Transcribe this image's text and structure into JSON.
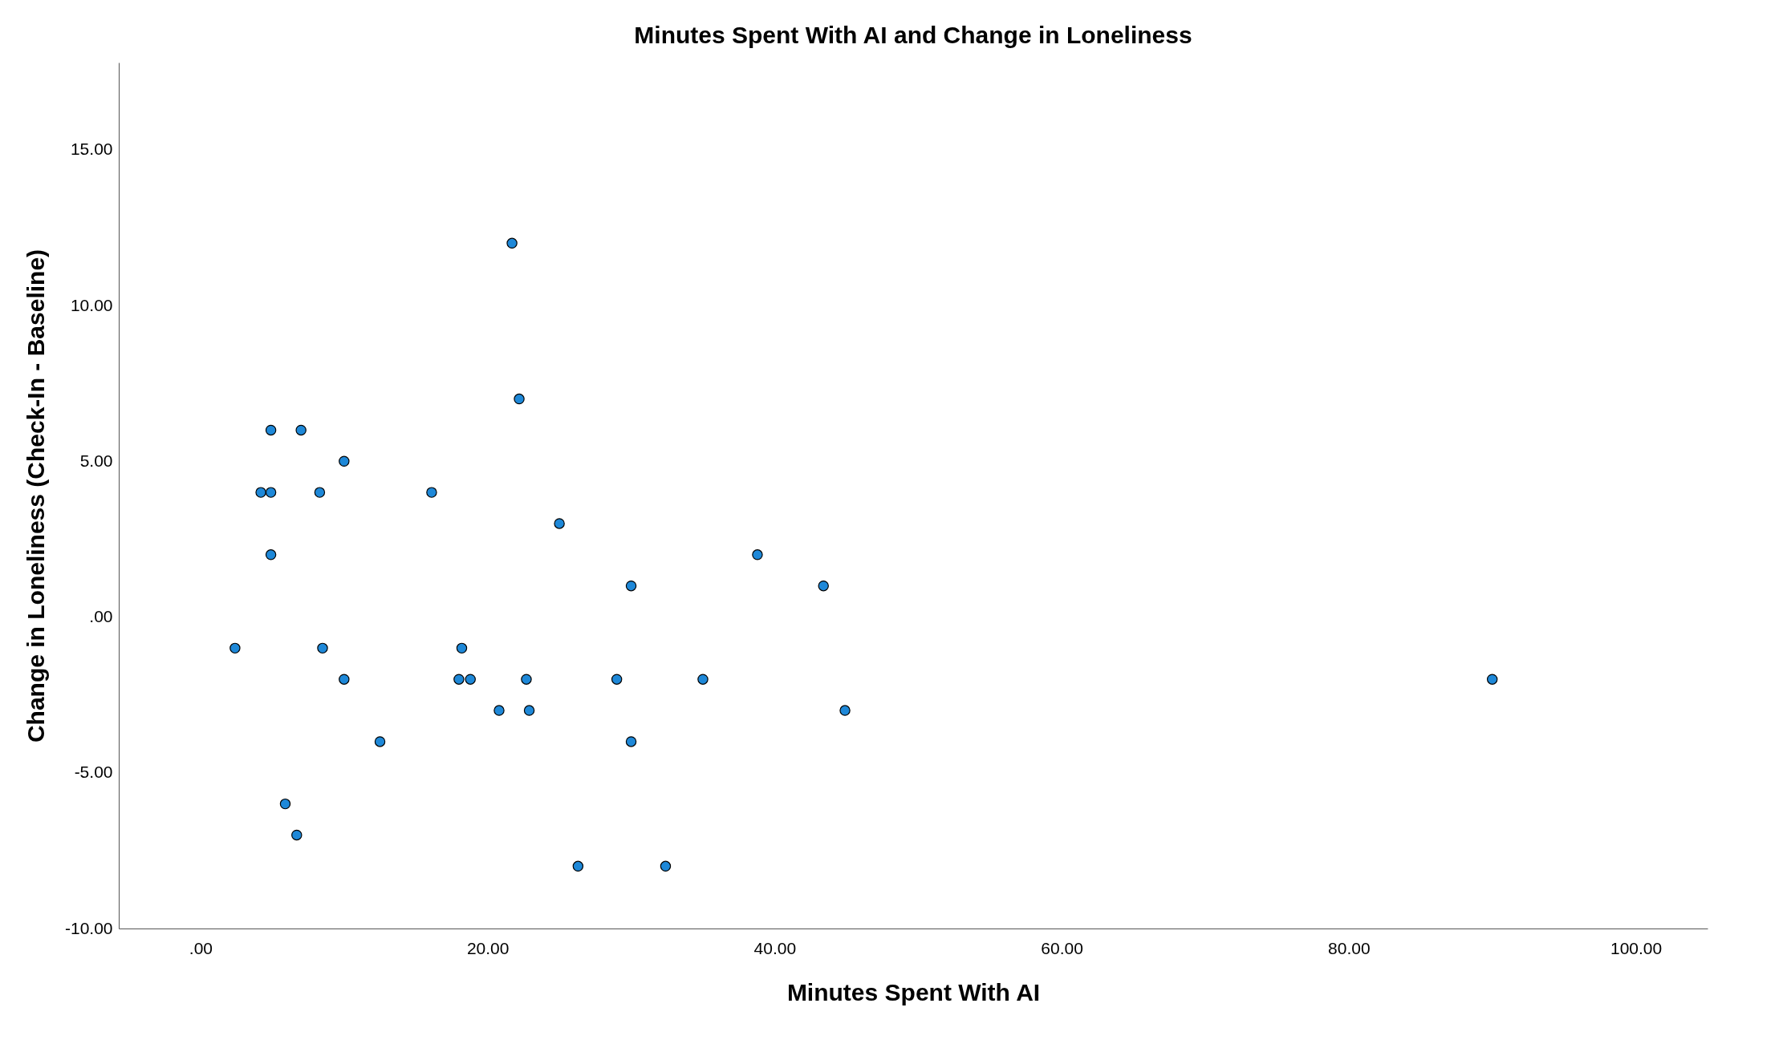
{
  "chart_data": {
    "type": "scatter",
    "title": "Minutes Spent With AI and Change in Loneliness",
    "xlabel": "Minutes Spent With AI",
    "ylabel": "Change in Loneliness (Check-In - Baseline)",
    "x": [
      2.4,
      4.2,
      4.9,
      4.9,
      4.9,
      5.9,
      6.7,
      7.0,
      8.3,
      8.5,
      10.0,
      10.0,
      12.5,
      16.1,
      18.0,
      18.2,
      18.8,
      20.8,
      21.7,
      22.2,
      22.7,
      22.9,
      25.0,
      26.3,
      29.0,
      30.0,
      30.0,
      32.4,
      35.0,
      38.8,
      43.4,
      44.9,
      90.0
    ],
    "series": [
      {
        "color": "#1e88d8",
        "values": [
          -1,
          4,
          4,
          6,
          2,
          -6,
          -7,
          6,
          4,
          -1,
          5,
          -2,
          -4,
          4,
          -2,
          -1,
          -2,
          -3,
          12,
          7,
          -2,
          -3,
          3,
          -8,
          -2,
          1,
          -4,
          -8,
          -2,
          2,
          1,
          -3,
          -2
        ]
      }
    ],
    "xlim": [
      -5.7,
      105
    ],
    "ylim": [
      -10,
      17.8
    ],
    "xticks": [
      {
        "value": 0,
        "label": ".00"
      },
      {
        "value": 20,
        "label": "20.00"
      },
      {
        "value": 40,
        "label": "40.00"
      },
      {
        "value": 60,
        "label": "60.00"
      },
      {
        "value": 80,
        "label": "80.00"
      },
      {
        "value": 100,
        "label": "100.00"
      }
    ],
    "yticks": [
      {
        "value": -10,
        "label": "-10.00"
      },
      {
        "value": -5,
        "label": "-5.00"
      },
      {
        "value": 0,
        "label": ".00"
      },
      {
        "value": 5,
        "label": "5.00"
      },
      {
        "value": 10,
        "label": "10.00"
      },
      {
        "value": 15,
        "label": "15.00"
      }
    ],
    "grid": false,
    "marker": "circle",
    "legend": false
  }
}
